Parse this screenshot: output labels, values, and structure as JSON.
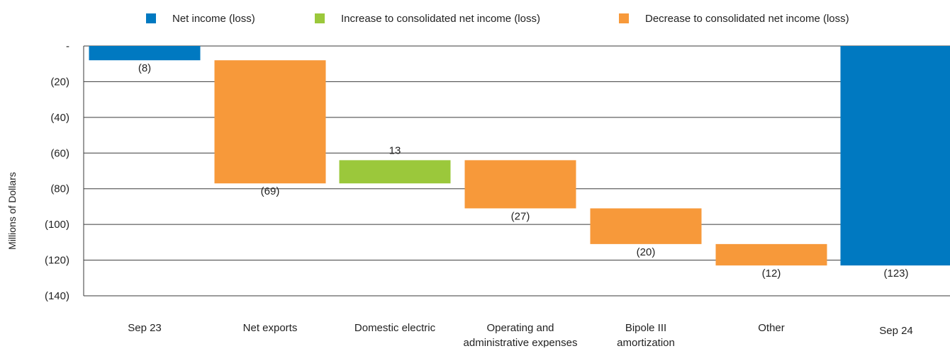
{
  "chart_data": {
    "type": "bar",
    "subtype": "waterfall",
    "title": "",
    "ylabel": "Millions of Dollars",
    "xlabel": "",
    "ylim": [
      -140,
      0
    ],
    "grid": true,
    "legend_position": "top",
    "y_ticks": [
      {
        "value": 0,
        "label": "-"
      },
      {
        "value": -20,
        "label": "(20)"
      },
      {
        "value": -40,
        "label": "(40)"
      },
      {
        "value": -60,
        "label": "(60)"
      },
      {
        "value": -80,
        "label": "(80)"
      },
      {
        "value": -100,
        "label": "(100)"
      },
      {
        "value": -120,
        "label": "(120)"
      },
      {
        "value": -140,
        "label": "(140)"
      }
    ],
    "legend": [
      {
        "key": "net",
        "label": "Net income (loss)",
        "color": "#0079C1"
      },
      {
        "key": "increase",
        "label": "Increase to consolidated net income (loss)",
        "color": "#9BC83B"
      },
      {
        "key": "decrease",
        "label": "Decrease to consolidated net income (loss)",
        "color": "#F7993A"
      }
    ],
    "bars": [
      {
        "category": [
          "Sep 23"
        ],
        "kind": "net",
        "start": 0,
        "end": -8,
        "label": "(8)"
      },
      {
        "category": [
          "Net exports"
        ],
        "kind": "decrease",
        "start": -8,
        "end": -77,
        "label": "(69)"
      },
      {
        "category": [
          "Domestic electric"
        ],
        "kind": "increase",
        "start": -77,
        "end": -64,
        "label": "13"
      },
      {
        "category": [
          "Operating and",
          "administrative expenses"
        ],
        "kind": "decrease",
        "start": -64,
        "end": -91,
        "label": "(27)"
      },
      {
        "category": [
          "Bipole III",
          "amortization"
        ],
        "kind": "decrease",
        "start": -91,
        "end": -111,
        "label": "(20)"
      },
      {
        "category": [
          "Other"
        ],
        "kind": "decrease",
        "start": -111,
        "end": -123,
        "label": "(12)"
      },
      {
        "category": [
          "Sep 24"
        ],
        "kind": "net",
        "start": 0,
        "end": -123,
        "label": "(123)"
      }
    ]
  }
}
